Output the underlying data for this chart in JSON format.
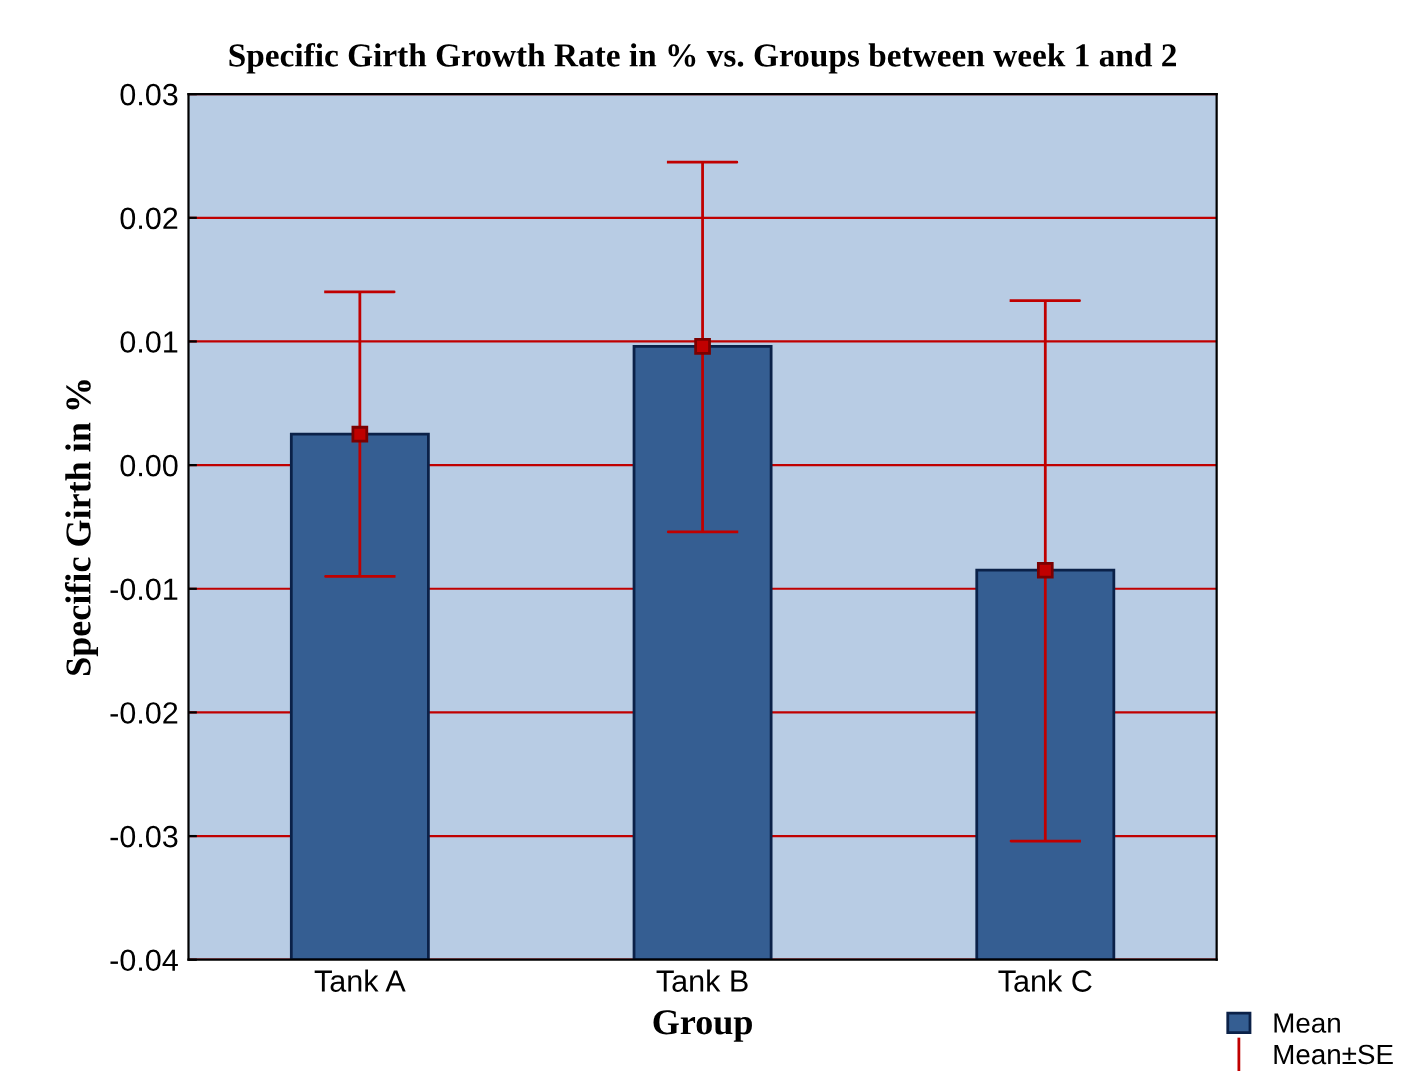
{
  "chart_data": {
    "type": "bar",
    "title": "Specific Girth Growth Rate in % vs. Groups between week 1 and 2",
    "xlabel": "Group",
    "ylabel": "Specific Girth in %",
    "categories": [
      "Tank A",
      "Tank B",
      "Tank C"
    ],
    "series": [
      {
        "name": "Mean",
        "color": "#355e92",
        "base": [
          -0.04,
          -0.04,
          -0.04
        ],
        "values": [
          0.0425,
          0.0496,
          0.0315
        ]
      },
      {
        "type": "scatter",
        "name": "Mean±SE",
        "color": "#c00000",
        "values": [
          0.0025,
          0.0096,
          -0.0085
        ],
        "errors": [
          [
            -0.009,
            0.014
          ],
          [
            -0.0054,
            0.0245
          ],
          [
            -0.0304,
            0.0133
          ]
        ],
        "marker": "square"
      }
    ],
    "ylim": [
      -0.04,
      0.03
    ],
    "yticks": [
      {
        "value": -0.04,
        "label": "-0.04"
      },
      {
        "value": -0.03,
        "label": "-0.03"
      },
      {
        "value": -0.02,
        "label": "-0.02"
      },
      {
        "value": -0.01,
        "label": "-0.01"
      },
      {
        "value": 0,
        "label": "0.00"
      },
      {
        "value": 0.01,
        "label": "0.01"
      },
      {
        "value": 0.02,
        "label": "0.02"
      },
      {
        "value": 0.03,
        "label": "0.03"
      }
    ],
    "grid": "y",
    "legend": "bottom right"
  }
}
